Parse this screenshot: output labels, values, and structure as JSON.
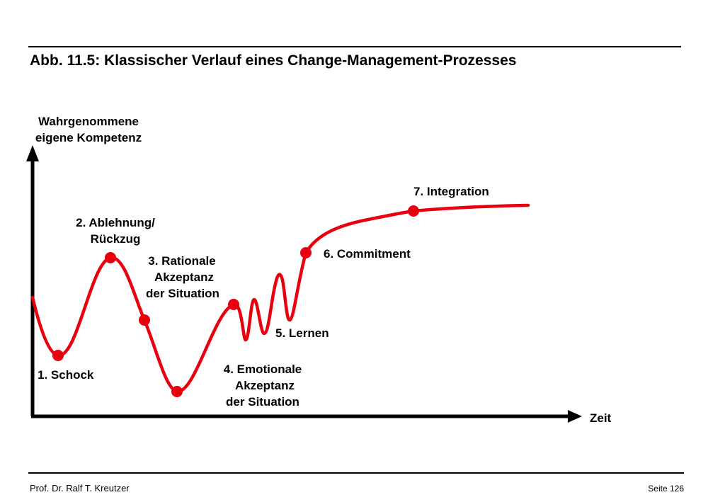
{
  "title": "Abb. 11.5: Klassischer Verlauf eines Change-Management-Prozesses",
  "axes": {
    "y_label_line1": "Wahrgenommene",
    "y_label_line2": "eigene Kompetenz",
    "x_label": "Zeit"
  },
  "stages": {
    "s1": "1. Schock",
    "s2_line1": "2. Ablehnung/",
    "s2_line2": "Rückzug",
    "s3_line1": "3. Rationale",
    "s3_line2": "Akzeptanz",
    "s3_line3": "der Situation",
    "s4_line1": "4. Emotionale",
    "s4_line2": "Akzeptanz",
    "s4_line3": "der Situation",
    "s5": "5. Lernen",
    "s6": "6. Commitment",
    "s7": "7. Integration"
  },
  "colors": {
    "curve": "#e8000e",
    "axis": "#000000"
  },
  "footer": {
    "author": "Prof. Dr. Ralf T. Kreutzer",
    "page": "Seite 126"
  }
}
